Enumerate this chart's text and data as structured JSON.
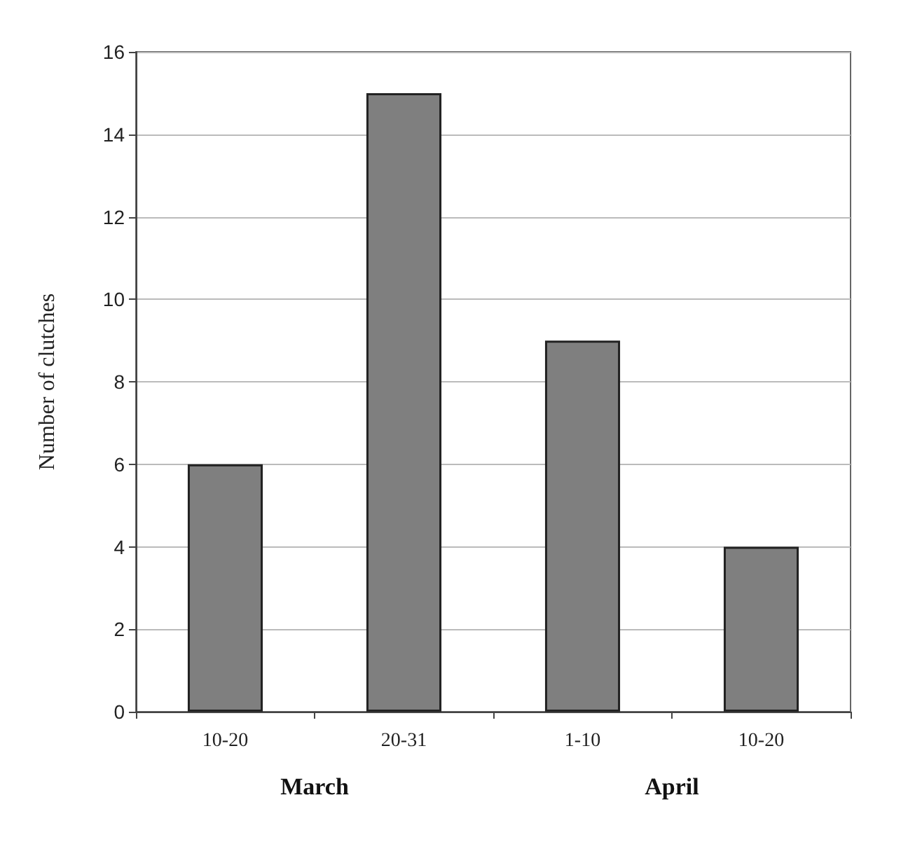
{
  "chart_data": {
    "type": "bar",
    "ylabel": "Number of clutches",
    "categories": [
      "10-20",
      "20-31",
      "1-10",
      "10-20"
    ],
    "values": [
      6,
      15,
      9,
      4
    ],
    "color": "#7f7f7f",
    "ylim": [
      0,
      16
    ],
    "yticks": [
      0,
      2,
      4,
      6,
      8,
      10,
      12,
      14,
      16
    ],
    "grid": "y",
    "annotations": [
      "March",
      "April"
    ]
  }
}
